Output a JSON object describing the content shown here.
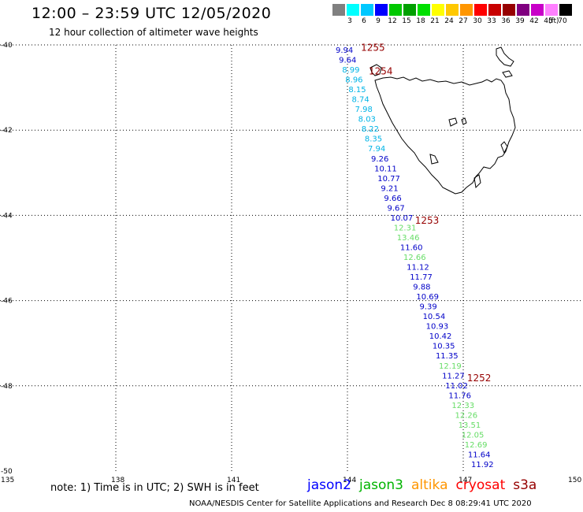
{
  "header": {
    "title": "12:00 – 23:59 UTC 12/05/2020",
    "subtitle": "12 hour collection of altimeter wave heights"
  },
  "colorbar": {
    "colors": [
      "#808080",
      "#00ffff",
      "#00c8ff",
      "#0000ff",
      "#00c800",
      "#00a000",
      "#00e000",
      "#ffff00",
      "#ffc800",
      "#ff9600",
      "#ff0000",
      "#c80000",
      "#960000",
      "#800080",
      "#c800c8",
      "#ff80ff",
      "#000000"
    ],
    "labels": [
      "3",
      "6",
      "9",
      "12",
      "15",
      "18",
      "21",
      "24",
      "27",
      "30",
      "33",
      "36",
      "39",
      "42",
      "45",
      "70"
    ],
    "unit": "(ft)"
  },
  "axes": {
    "lon_ticks": [
      "135",
      "138",
      "141",
      "144",
      "147",
      "150"
    ],
    "lat_ticks": [
      "-40",
      "-42",
      "-44",
      "-46",
      "-48",
      "-50"
    ]
  },
  "track": {
    "points": [
      {
        "v": "9.94",
        "c": "#0000c8"
      },
      {
        "v": "9.64",
        "c": "#0000c8"
      },
      {
        "v": "8.99",
        "c": "#00b4e6"
      },
      {
        "v": "8.96",
        "c": "#00b4e6"
      },
      {
        "v": "8.15",
        "c": "#00b4e6"
      },
      {
        "v": "8.74",
        "c": "#00b4e6"
      },
      {
        "v": "7.98",
        "c": "#00b4e6"
      },
      {
        "v": "8.03",
        "c": "#00b4e6"
      },
      {
        "v": "8.22",
        "c": "#00b4e6"
      },
      {
        "v": "8.35",
        "c": "#00b4e6"
      },
      {
        "v": "7.94",
        "c": "#00b4e6"
      },
      {
        "v": "9.26",
        "c": "#0000c8"
      },
      {
        "v": "10.11",
        "c": "#0000c8"
      },
      {
        "v": "10.77",
        "c": "#0000c8"
      },
      {
        "v": "9.21",
        "c": "#0000c8"
      },
      {
        "v": "9.66",
        "c": "#0000c8"
      },
      {
        "v": "9.67",
        "c": "#0000c8"
      },
      {
        "v": "10.07",
        "c": "#0000c8"
      },
      {
        "v": "12.31",
        "c": "#66dd66"
      },
      {
        "v": "13.46",
        "c": "#66dd66"
      },
      {
        "v": "11.60",
        "c": "#0000c8"
      },
      {
        "v": "12.66",
        "c": "#66dd66"
      },
      {
        "v": "11.12",
        "c": "#0000c8"
      },
      {
        "v": "11.77",
        "c": "#0000c8"
      },
      {
        "v": "9.88",
        "c": "#0000c8"
      },
      {
        "v": "10.69",
        "c": "#0000c8"
      },
      {
        "v": "9.39",
        "c": "#0000c8"
      },
      {
        "v": "10.54",
        "c": "#0000c8"
      },
      {
        "v": "10.93",
        "c": "#0000c8"
      },
      {
        "v": "10.42",
        "c": "#0000c8"
      },
      {
        "v": "10.35",
        "c": "#0000c8"
      },
      {
        "v": "11.35",
        "c": "#0000c8"
      },
      {
        "v": "12.19",
        "c": "#66dd66"
      },
      {
        "v": "11.27",
        "c": "#0000c8"
      },
      {
        "v": "11.02",
        "c": "#0000c8"
      },
      {
        "v": "11.76",
        "c": "#0000c8"
      },
      {
        "v": "12.33",
        "c": "#66dd66"
      },
      {
        "v": "12.26",
        "c": "#66dd66"
      },
      {
        "v": "13.51",
        "c": "#66dd66"
      },
      {
        "v": "12.05",
        "c": "#66dd66"
      },
      {
        "v": "12.69",
        "c": "#66dd66"
      },
      {
        "v": "11.64",
        "c": "#0000c8"
      },
      {
        "v": "11.92",
        "c": "#0000c8"
      }
    ],
    "time_labels": [
      {
        "t": "1255",
        "lat": -40.05,
        "lon": 144.35
      },
      {
        "t": "1254",
        "lat": -40.6,
        "lon": 144.55
      },
      {
        "t": "1253",
        "lat": -44.1,
        "lon": 145.75
      },
      {
        "t": "1252",
        "lat": -47.8,
        "lon": 147.1
      }
    ]
  },
  "note": "note:  1) Time is in UTC;  2) SWH is in feet",
  "legend": [
    {
      "name": "jason2",
      "color": "#0000ff"
    },
    {
      "name": "jason3",
      "color": "#00b400"
    },
    {
      "name": "altika",
      "color": "#ff9600"
    },
    {
      "name": "cryosat",
      "color": "#ff0000"
    },
    {
      "name": "s3a",
      "color": "#960000"
    }
  ],
  "credit": "NOAA/NESDIS Center for Satellite Applications and Research    Dec  8 08:29:41 UTC 2020"
}
